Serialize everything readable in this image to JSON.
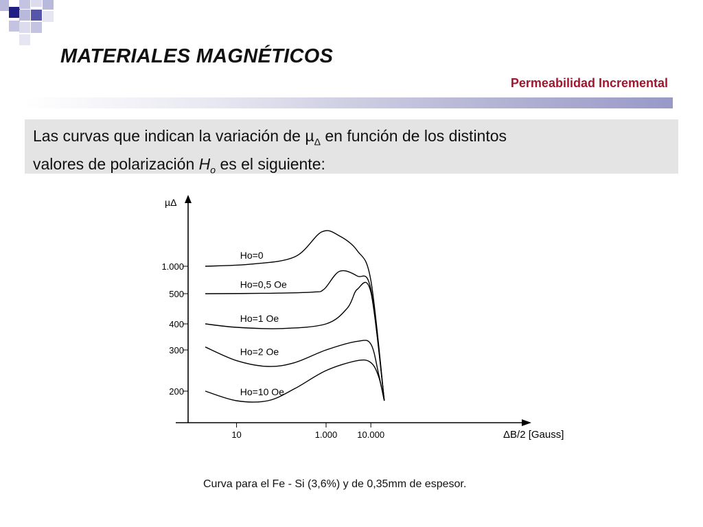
{
  "header": {
    "title": "MATERIALES MAGNÉTICOS",
    "subtitle": "Permeabilidad Incremental"
  },
  "intro": {
    "line1_a": "Las curvas que indican la variación de µ",
    "line1_sub": "Δ",
    "line1_b": " en función de los distintos",
    "line2_a": "valores de polarización ",
    "line2_var": "H",
    "line2_sub": "o",
    "line2_b": " es el siguiente:"
  },
  "colors": {
    "accent_dark": "#1f1f86",
    "accent_mid": "#5555aa",
    "accent_light": "#b9b9dc",
    "subtitle": "#a0162e",
    "rule": "#9999c8",
    "panel": "#e4e4e4"
  },
  "chart_data": {
    "type": "line",
    "ylabel": "µΔ",
    "xlabel": "ΔB/2 [Gauss]",
    "x_scale": "log",
    "y_ticks": [
      "1.000",
      "500",
      "400",
      "300",
      "200"
    ],
    "x_ticks": [
      "10",
      "1.000",
      "10.000"
    ],
    "series": [
      {
        "name": "Ho=0",
        "points": [
          [
            2,
            1000
          ],
          [
            20,
            1040
          ],
          [
            200,
            1200
          ],
          [
            800,
            1950
          ],
          [
            2000,
            1800
          ],
          [
            5000,
            1350
          ],
          [
            10000,
            700
          ],
          [
            20000,
            190
          ]
        ]
      },
      {
        "name": "Ho=0,5 Oe",
        "points": [
          [
            2,
            500
          ],
          [
            50,
            505
          ],
          [
            500,
            520
          ],
          [
            900,
            560
          ],
          [
            2000,
            880
          ],
          [
            5000,
            780
          ],
          [
            10000,
            560
          ],
          [
            20000,
            190
          ]
        ]
      },
      {
        "name": "Ho=1 Oe",
        "points": [
          [
            2,
            400
          ],
          [
            10,
            385
          ],
          [
            100,
            380
          ],
          [
            1000,
            400
          ],
          [
            3000,
            450
          ],
          [
            5000,
            560
          ],
          [
            10000,
            520
          ],
          [
            20000,
            190
          ]
        ]
      },
      {
        "name": "Ho=2 Oe",
        "points": [
          [
            2,
            310
          ],
          [
            10,
            270
          ],
          [
            50,
            255
          ],
          [
            200,
            265
          ],
          [
            1000,
            300
          ],
          [
            5000,
            330
          ],
          [
            10000,
            320
          ],
          [
            15000,
            235
          ],
          [
            20000,
            190
          ]
        ]
      },
      {
        "name": "Ho=10 Oe",
        "points": [
          [
            2,
            200
          ],
          [
            10,
            185
          ],
          [
            50,
            180
          ],
          [
            200,
            205
          ],
          [
            1000,
            245
          ],
          [
            5000,
            270
          ],
          [
            10000,
            265
          ],
          [
            15000,
            230
          ],
          [
            20000,
            190
          ]
        ]
      }
    ]
  },
  "caption": "Curva para el Fe - Si (3,6%) y de 0,35mm de espesor."
}
